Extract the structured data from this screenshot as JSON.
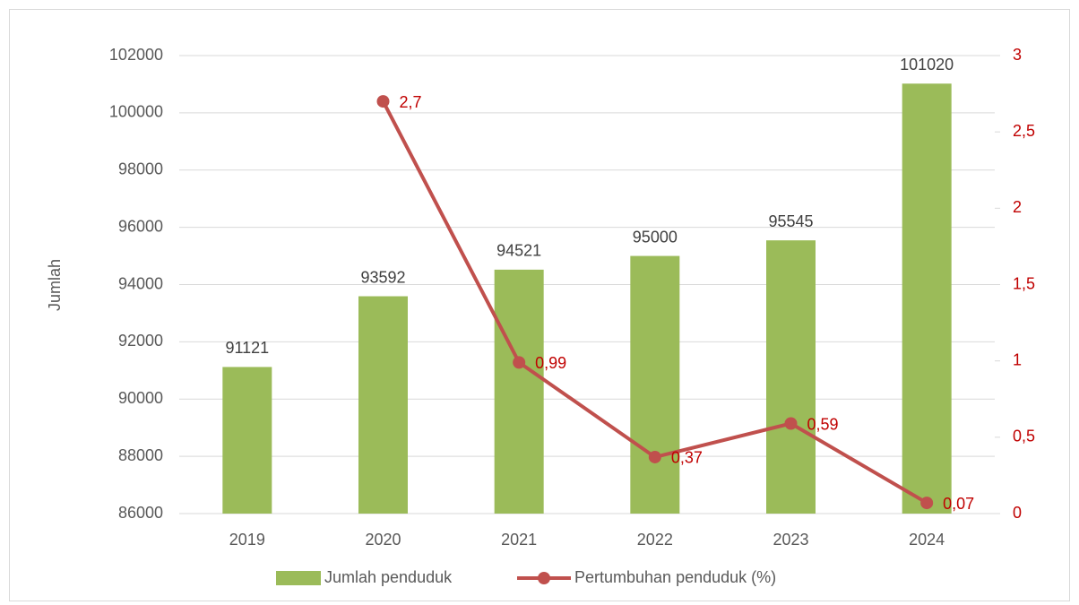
{
  "chart_data": {
    "type": "bar",
    "y_label": "Jumlah",
    "categories": [
      "2019",
      "2020",
      "2021",
      "2022",
      "2023",
      "2024"
    ],
    "series": [
      {
        "name": "Jumlah penduduk",
        "type": "bar",
        "color": "#9bbb59",
        "values": [
          91121,
          93592,
          94521,
          95000,
          95545,
          101020
        ]
      },
      {
        "name": "Pertumbuhan penduduk (%)",
        "type": "line",
        "axis": "y2",
        "color": "#c0504d",
        "values": [
          null,
          2.7,
          0.99,
          0.37,
          0.59,
          0.07
        ],
        "value_labels": [
          null,
          "2,7",
          "0,99",
          "0,37",
          "0,59",
          "0,07"
        ]
      }
    ],
    "ylim": [
      86000,
      102000
    ],
    "yticks": [
      86000,
      88000,
      90000,
      92000,
      94000,
      96000,
      98000,
      100000,
      102000
    ],
    "y2lim": [
      0,
      3
    ],
    "y2ticks": [
      0,
      {
        "value": 0.5,
        "label": "0,5"
      },
      1,
      {
        "value": 1.5,
        "label": "1,5"
      },
      2,
      {
        "value": 2.5,
        "label": "2,5"
      },
      3
    ],
    "y2_color": "#c00000",
    "grid": true,
    "legend": "bottom"
  }
}
